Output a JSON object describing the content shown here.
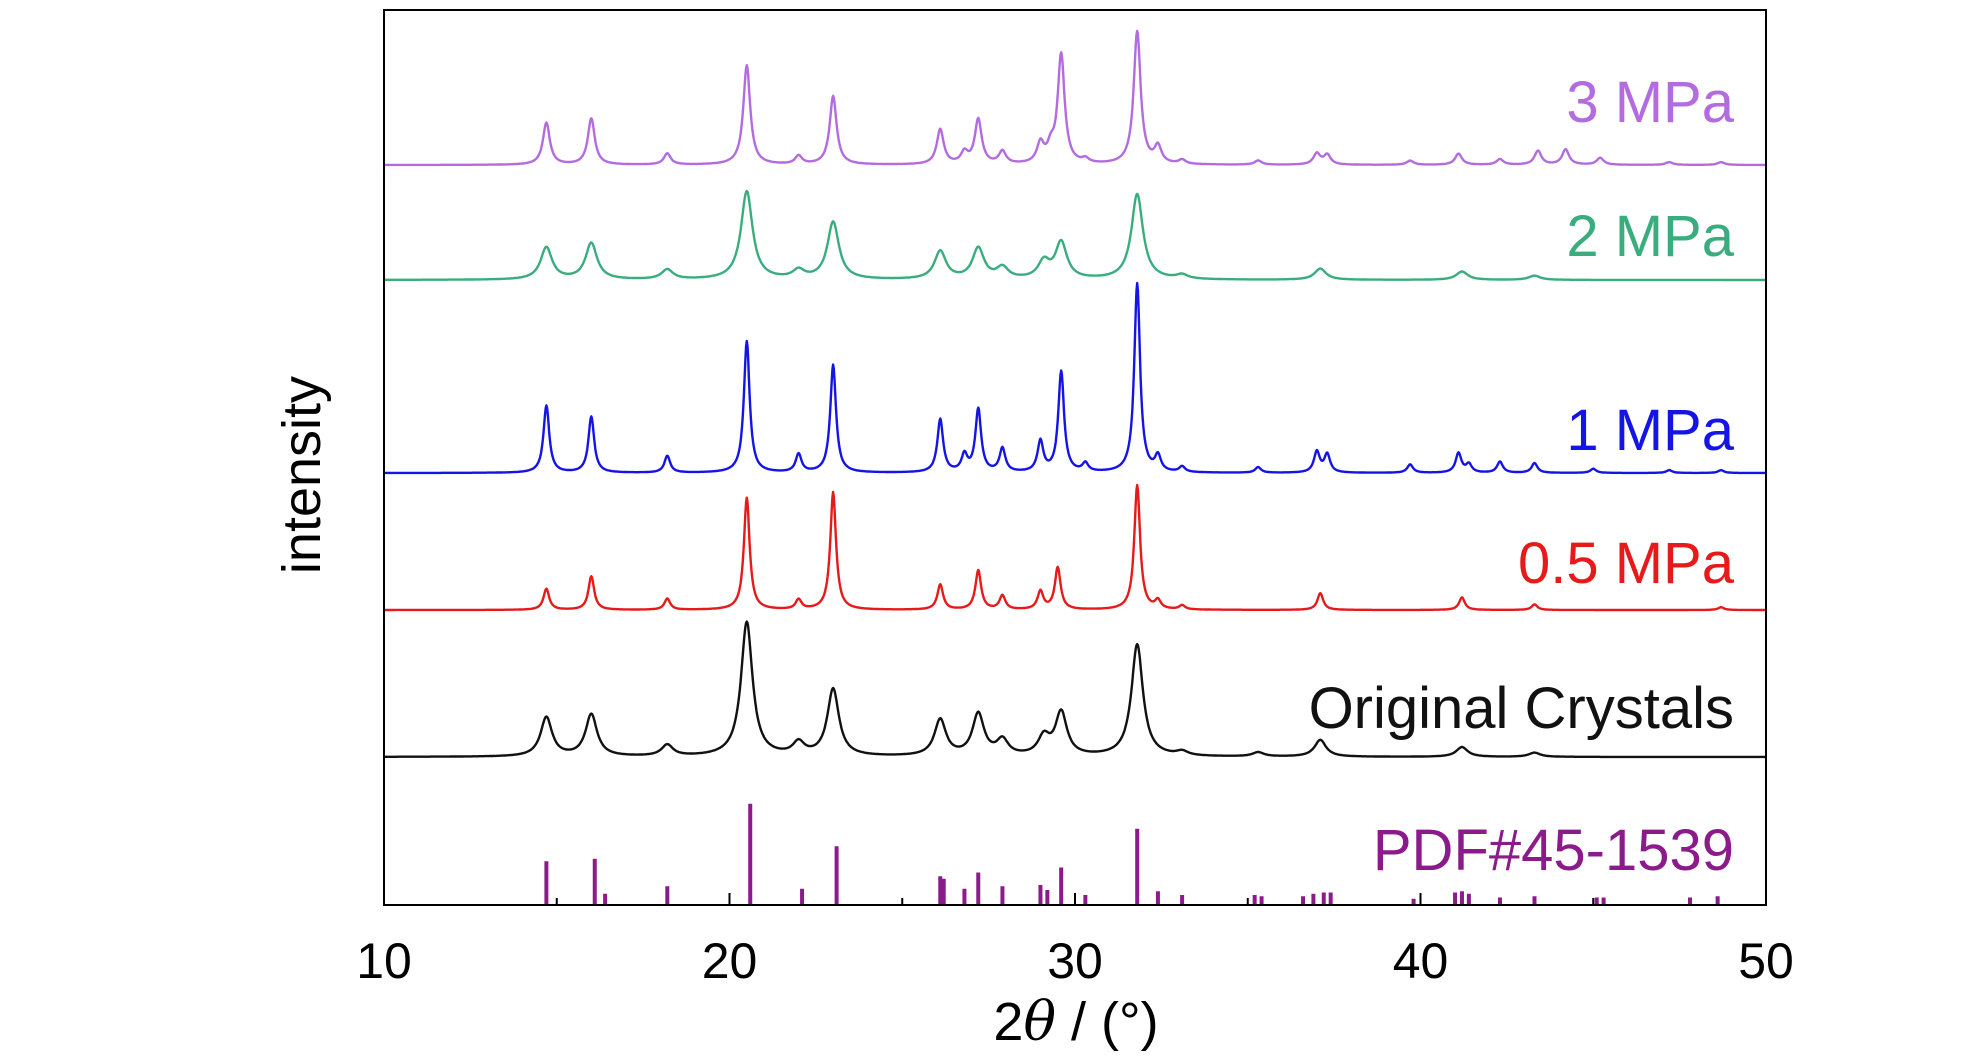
{
  "chart_data": {
    "type": "line",
    "xlabel_prefix": "2",
    "xlabel_symbol": "θ",
    "xlabel_suffix": " / (°)",
    "ylabel": "intensity",
    "xlim": [
      10,
      50
    ],
    "x_ticks": [
      "10",
      "20",
      "30",
      "40",
      "50"
    ],
    "grid": false,
    "series": [
      {
        "name": "3 MPa",
        "color": "#b36ce0",
        "peaks": [
          {
            "x": 14.7,
            "h": 0.3
          },
          {
            "x": 16.0,
            "h": 0.33
          },
          {
            "x": 18.2,
            "h": 0.08
          },
          {
            "x": 20.5,
            "h": 0.71
          },
          {
            "x": 22.0,
            "h": 0.06
          },
          {
            "x": 23.0,
            "h": 0.49
          },
          {
            "x": 26.1,
            "h": 0.25
          },
          {
            "x": 26.8,
            "h": 0.08
          },
          {
            "x": 27.2,
            "h": 0.32
          },
          {
            "x": 27.9,
            "h": 0.09
          },
          {
            "x": 29.0,
            "h": 0.14
          },
          {
            "x": 29.3,
            "h": 0.1
          },
          {
            "x": 29.6,
            "h": 0.78
          },
          {
            "x": 30.3,
            "h": 0.03
          },
          {
            "x": 31.8,
            "h": 0.95
          },
          {
            "x": 32.4,
            "h": 0.12
          },
          {
            "x": 33.1,
            "h": 0.03
          },
          {
            "x": 35.3,
            "h": 0.03
          },
          {
            "x": 37.0,
            "h": 0.08
          },
          {
            "x": 37.3,
            "h": 0.07
          },
          {
            "x": 39.7,
            "h": 0.03
          },
          {
            "x": 41.1,
            "h": 0.08
          },
          {
            "x": 42.3,
            "h": 0.04
          },
          {
            "x": 43.4,
            "h": 0.1
          },
          {
            "x": 44.2,
            "h": 0.11
          },
          {
            "x": 45.2,
            "h": 0.05
          },
          {
            "x": 47.2,
            "h": 0.02
          },
          {
            "x": 48.7,
            "h": 0.02
          }
        ]
      },
      {
        "name": "2 MPa",
        "color": "#3aad7e",
        "peaks": [
          {
            "x": 14.7,
            "h": 0.23
          },
          {
            "x": 16.0,
            "h": 0.26
          },
          {
            "x": 18.2,
            "h": 0.07
          },
          {
            "x": 20.5,
            "h": 0.63
          },
          {
            "x": 22.0,
            "h": 0.06
          },
          {
            "x": 23.0,
            "h": 0.41
          },
          {
            "x": 26.1,
            "h": 0.2
          },
          {
            "x": 27.2,
            "h": 0.22
          },
          {
            "x": 27.9,
            "h": 0.08
          },
          {
            "x": 29.1,
            "h": 0.12
          },
          {
            "x": 29.6,
            "h": 0.26
          },
          {
            "x": 31.8,
            "h": 0.61
          },
          {
            "x": 33.1,
            "h": 0.03
          },
          {
            "x": 37.1,
            "h": 0.08
          },
          {
            "x": 41.2,
            "h": 0.06
          },
          {
            "x": 43.3,
            "h": 0.03
          }
        ]
      },
      {
        "name": "1 MPa",
        "color": "#1414e6",
        "peaks": [
          {
            "x": 14.7,
            "h": 0.48
          },
          {
            "x": 16.0,
            "h": 0.4
          },
          {
            "x": 18.2,
            "h": 0.12
          },
          {
            "x": 20.5,
            "h": 0.94
          },
          {
            "x": 22.0,
            "h": 0.13
          },
          {
            "x": 23.0,
            "h": 0.77
          },
          {
            "x": 26.1,
            "h": 0.38
          },
          {
            "x": 26.8,
            "h": 0.12
          },
          {
            "x": 27.2,
            "h": 0.45
          },
          {
            "x": 27.9,
            "h": 0.17
          },
          {
            "x": 29.0,
            "h": 0.22
          },
          {
            "x": 29.6,
            "h": 0.72
          },
          {
            "x": 30.3,
            "h": 0.06
          },
          {
            "x": 31.8,
            "h": 1.35
          },
          {
            "x": 32.4,
            "h": 0.11
          },
          {
            "x": 33.1,
            "h": 0.04
          },
          {
            "x": 35.3,
            "h": 0.04
          },
          {
            "x": 37.0,
            "h": 0.15
          },
          {
            "x": 37.3,
            "h": 0.13
          },
          {
            "x": 39.7,
            "h": 0.06
          },
          {
            "x": 41.1,
            "h": 0.14
          },
          {
            "x": 41.4,
            "h": 0.06
          },
          {
            "x": 42.3,
            "h": 0.08
          },
          {
            "x": 43.3,
            "h": 0.07
          },
          {
            "x": 45.0,
            "h": 0.03
          },
          {
            "x": 47.2,
            "h": 0.02
          },
          {
            "x": 48.7,
            "h": 0.02
          }
        ]
      },
      {
        "name": "0.5 MPa",
        "color": "#e61a1a",
        "peaks": [
          {
            "x": 14.7,
            "h": 0.15
          },
          {
            "x": 16.0,
            "h": 0.24
          },
          {
            "x": 18.2,
            "h": 0.08
          },
          {
            "x": 20.5,
            "h": 0.8
          },
          {
            "x": 22.0,
            "h": 0.07
          },
          {
            "x": 23.0,
            "h": 0.84
          },
          {
            "x": 26.1,
            "h": 0.18
          },
          {
            "x": 27.2,
            "h": 0.28
          },
          {
            "x": 27.9,
            "h": 0.1
          },
          {
            "x": 29.0,
            "h": 0.13
          },
          {
            "x": 29.5,
            "h": 0.3
          },
          {
            "x": 31.8,
            "h": 0.89
          },
          {
            "x": 32.4,
            "h": 0.06
          },
          {
            "x": 33.1,
            "h": 0.03
          },
          {
            "x": 37.1,
            "h": 0.12
          },
          {
            "x": 41.2,
            "h": 0.09
          },
          {
            "x": 43.3,
            "h": 0.04
          },
          {
            "x": 48.7,
            "h": 0.02
          }
        ]
      },
      {
        "name": "Original Crystals",
        "color": "#111111",
        "peaks": [
          {
            "x": 14.7,
            "h": 0.28
          },
          {
            "x": 16.0,
            "h": 0.3
          },
          {
            "x": 18.2,
            "h": 0.08
          },
          {
            "x": 20.5,
            "h": 0.96
          },
          {
            "x": 22.0,
            "h": 0.09
          },
          {
            "x": 23.0,
            "h": 0.48
          },
          {
            "x": 26.1,
            "h": 0.26
          },
          {
            "x": 27.2,
            "h": 0.3
          },
          {
            "x": 27.9,
            "h": 0.11
          },
          {
            "x": 29.1,
            "h": 0.13
          },
          {
            "x": 29.6,
            "h": 0.31
          },
          {
            "x": 31.8,
            "h": 0.8
          },
          {
            "x": 33.1,
            "h": 0.03
          },
          {
            "x": 35.3,
            "h": 0.03
          },
          {
            "x": 37.1,
            "h": 0.12
          },
          {
            "x": 41.2,
            "h": 0.07
          },
          {
            "x": 43.3,
            "h": 0.03
          }
        ]
      }
    ],
    "reference": {
      "name": "PDF#45-1539",
      "color": "#8b1a8b",
      "sticks": [
        {
          "x": 14.7,
          "h": 0.35
        },
        {
          "x": 16.1,
          "h": 0.37
        },
        {
          "x": 16.4,
          "h": 0.09
        },
        {
          "x": 18.2,
          "h": 0.15
        },
        {
          "x": 20.6,
          "h": 0.81
        },
        {
          "x": 22.1,
          "h": 0.13
        },
        {
          "x": 23.1,
          "h": 0.47
        },
        {
          "x": 26.1,
          "h": 0.23
        },
        {
          "x": 26.2,
          "h": 0.21
        },
        {
          "x": 26.8,
          "h": 0.13
        },
        {
          "x": 27.2,
          "h": 0.26
        },
        {
          "x": 27.9,
          "h": 0.15
        },
        {
          "x": 29.0,
          "h": 0.16
        },
        {
          "x": 29.2,
          "h": 0.12
        },
        {
          "x": 29.6,
          "h": 0.3
        },
        {
          "x": 30.3,
          "h": 0.08
        },
        {
          "x": 31.8,
          "h": 0.61
        },
        {
          "x": 32.4,
          "h": 0.11
        },
        {
          "x": 33.1,
          "h": 0.08
        },
        {
          "x": 35.2,
          "h": 0.08
        },
        {
          "x": 35.4,
          "h": 0.07
        },
        {
          "x": 36.6,
          "h": 0.07
        },
        {
          "x": 36.9,
          "h": 0.09
        },
        {
          "x": 37.2,
          "h": 0.1
        },
        {
          "x": 37.4,
          "h": 0.1
        },
        {
          "x": 39.8,
          "h": 0.05
        },
        {
          "x": 41.0,
          "h": 0.1
        },
        {
          "x": 41.2,
          "h": 0.11
        },
        {
          "x": 41.4,
          "h": 0.09
        },
        {
          "x": 42.3,
          "h": 0.06
        },
        {
          "x": 43.3,
          "h": 0.07
        },
        {
          "x": 45.1,
          "h": 0.06
        },
        {
          "x": 45.3,
          "h": 0.06
        },
        {
          "x": 47.8,
          "h": 0.06
        },
        {
          "x": 48.6,
          "h": 0.07
        }
      ]
    }
  }
}
